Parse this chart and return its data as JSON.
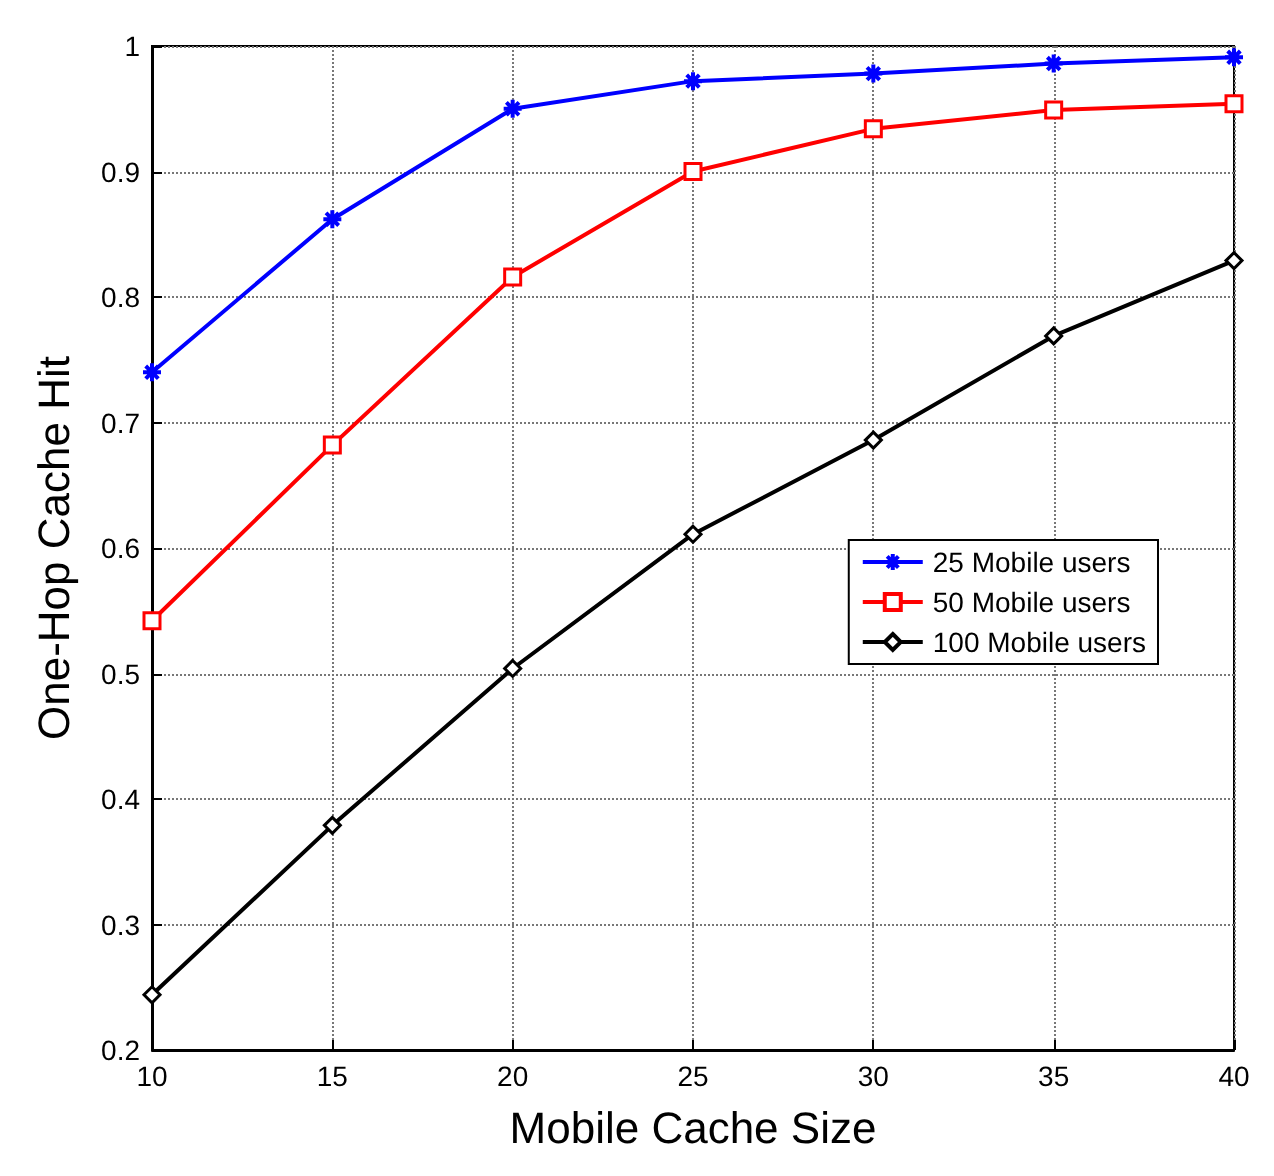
{
  "chart_data": {
    "type": "line",
    "xlabel": "Mobile Cache Size",
    "ylabel": "One-Hop Cache Hit",
    "x": [
      10,
      15,
      20,
      25,
      30,
      35,
      40
    ],
    "series": [
      {
        "name": "25 Mobile users",
        "color": "#0000ff",
        "marker": "cross",
        "values": [
          0.74,
          0.862,
          0.95,
          0.972,
          0.978,
          0.986,
          0.991
        ]
      },
      {
        "name": "50 Mobile users",
        "color": "#ff0000",
        "marker": "square",
        "values": [
          0.542,
          0.682,
          0.816,
          0.9,
          0.934,
          0.949,
          0.954
        ]
      },
      {
        "name": "100 Mobile users",
        "color": "#000000",
        "marker": "diamond",
        "values": [
          0.244,
          0.379,
          0.504,
          0.611,
          0.686,
          0.769,
          0.829
        ]
      }
    ],
    "xlim": [
      10,
      40
    ],
    "xticks": [
      10,
      15,
      20,
      25,
      30,
      35,
      40
    ],
    "ylim": [
      0.2,
      1
    ],
    "yticks": [
      0.2,
      0.3,
      0.4,
      0.5,
      0.6,
      0.7,
      0.8,
      0.9,
      1
    ],
    "grid": true,
    "legend": "right",
    "line_style": "solid"
  }
}
